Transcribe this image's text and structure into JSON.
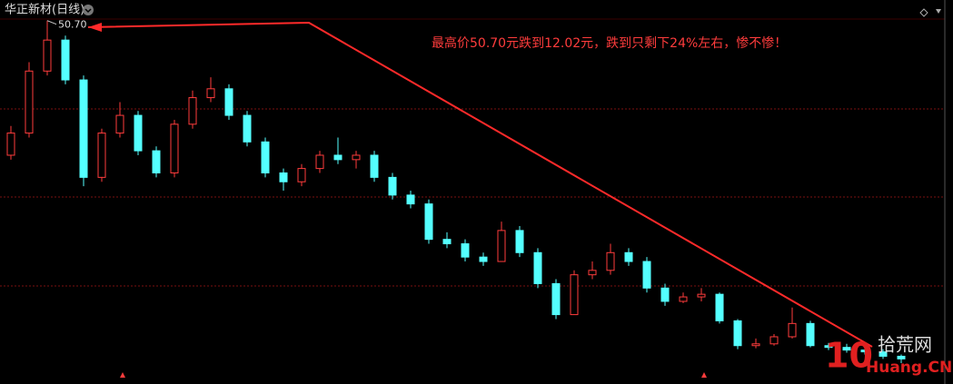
{
  "chart_data": {
    "type": "candlestick",
    "title": "华正新材(日线)",
    "annotation": "最高价50.70元跌到12.02元，跌到只剩下24%左右，惨不惨！",
    "high_marker": {
      "value": 50.7,
      "label": "50.70"
    },
    "up_color": "#ff3c3c",
    "down_color": "#54ffff",
    "ylim": [
      11,
      52
    ],
    "open": [
      35.5,
      38,
      45,
      48.5,
      44,
      33,
      38,
      40,
      36,
      33.5,
      39,
      42,
      43,
      40,
      37,
      33.5,
      32.5,
      34,
      35.5,
      35,
      35.5,
      33,
      31,
      30,
      26,
      25.5,
      24,
      23.5,
      27,
      24.5,
      21,
      17.5,
      22,
      22.5,
      24.5,
      23.5,
      20.5,
      19,
      19.5,
      19.8,
      16.8,
      14,
      14.2,
      15,
      16.5,
      14,
      13.8,
      13.5,
      13.3,
      12.8
    ],
    "close": [
      38,
      45,
      48.5,
      44,
      33,
      38,
      40,
      36,
      33.5,
      39,
      42,
      43,
      40,
      37,
      33.5,
      32.5,
      34,
      35.5,
      35,
      35.5,
      33,
      31,
      30,
      26,
      25.5,
      24,
      23.5,
      27,
      24.5,
      21,
      17.5,
      22,
      22.5,
      24.5,
      23.5,
      20.5,
      19,
      19.5,
      19.8,
      16.8,
      14,
      14.2,
      15,
      16.5,
      14,
      13.8,
      13.5,
      13.3,
      12.8,
      12.5
    ],
    "high": [
      38.8,
      46,
      50.7,
      49,
      44.5,
      38.5,
      41.5,
      40.5,
      36.5,
      39.5,
      42.8,
      44.3,
      43.5,
      40.5,
      37.5,
      34,
      34.5,
      36,
      37.5,
      36,
      36,
      33.5,
      31.5,
      30.5,
      26.8,
      26,
      24.5,
      28,
      27.5,
      25,
      21.5,
      22.5,
      23.5,
      25.5,
      25,
      24,
      21,
      20,
      20.5,
      20,
      17,
      14.8,
      15.3,
      18.3,
      16.8,
      14.3,
      14.2,
      13.9,
      13.6,
      13
    ],
    "low": [
      35,
      37.5,
      44.5,
      43.5,
      32,
      32.5,
      37.5,
      35.5,
      33,
      33,
      38.5,
      41.5,
      39.5,
      36.5,
      33,
      31.5,
      32,
      33.5,
      34.5,
      34,
      32.5,
      30.5,
      29.5,
      25.5,
      25,
      23.5,
      23,
      23.5,
      24,
      20.5,
      17,
      17.5,
      21.5,
      22,
      23,
      20,
      18.5,
      18.8,
      19,
      16.5,
      13.6,
      13.7,
      14,
      14.8,
      13.8,
      13.5,
      13.2,
      13,
      12.5,
      12.02
    ]
  },
  "watermark": {
    "number": "10",
    "name": "拾荒网",
    "site": "Huang.CN"
  }
}
